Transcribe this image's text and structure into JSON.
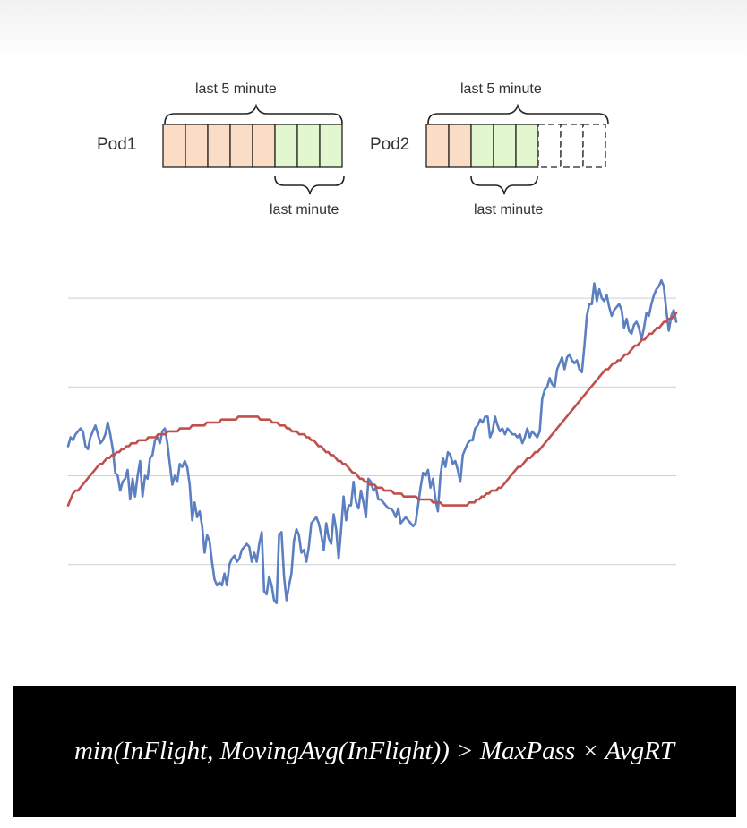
{
  "diagram": {
    "pods": [
      {
        "label": "Pod1",
        "top_label": "last 5 minute",
        "bottom_label": "last minute",
        "cells": [
          "past",
          "past",
          "past",
          "past",
          "past",
          "recent",
          "recent",
          "recent"
        ]
      },
      {
        "label": "Pod2",
        "top_label": "last 5 minute",
        "bottom_label": "last minute",
        "cells": [
          "past",
          "past",
          "recent",
          "recent",
          "recent",
          "empty",
          "empty",
          "empty"
        ]
      }
    ],
    "colors": {
      "past": "#fbdcc4",
      "recent": "#e3f7cf",
      "empty": "#ffffff",
      "stroke": "#222222"
    }
  },
  "chart_data": {
    "type": "line",
    "grid": true,
    "series": [
      {
        "color": "#5b7fc0",
        "values": [
          70,
          73,
          72,
          74,
          75,
          76,
          75,
          70,
          69,
          73,
          75,
          77,
          74,
          71,
          72,
          74,
          78,
          74,
          69,
          61,
          60,
          55,
          58,
          59,
          62,
          52,
          59,
          53,
          60,
          65,
          53,
          60,
          59,
          66,
          67,
          72,
          73,
          71,
          75,
          76,
          71,
          64,
          57,
          60,
          58,
          64,
          63,
          65,
          63,
          57,
          45,
          51,
          46,
          48,
          43,
          34,
          40,
          38,
          31,
          25,
          23,
          24,
          23,
          27,
          23,
          30,
          32,
          33,
          31,
          32,
          35,
          36,
          37,
          36,
          31,
          34,
          31,
          37,
          41,
          21,
          20,
          26,
          23,
          18,
          17,
          40,
          41,
          26,
          18,
          23,
          27,
          38,
          42,
          40,
          34,
          35,
          31,
          36,
          44,
          45,
          46,
          44,
          40,
          35,
          44,
          39,
          37,
          47,
          42,
          32,
          42,
          53,
          45,
          50,
          50,
          58,
          51,
          49,
          55,
          51,
          46,
          59,
          58,
          55,
          56,
          52,
          52,
          51,
          50,
          49,
          49,
          48,
          46,
          49,
          44,
          45,
          46,
          45,
          44,
          43,
          44,
          50,
          56,
          61,
          60,
          62,
          56,
          59,
          52,
          48,
          60,
          66,
          63,
          68,
          67,
          64,
          65,
          62,
          58,
          67,
          69,
          71,
          72,
          72,
          76,
          77,
          79,
          78,
          80,
          80,
          73,
          75,
          80,
          77,
          75,
          76,
          74,
          76,
          75,
          74,
          74,
          73,
          74,
          71,
          73,
          76,
          73,
          75,
          74,
          73,
          75,
          86,
          89,
          90,
          93,
          91,
          90,
          96,
          98,
          100,
          96,
          100,
          101,
          99,
          98,
          99,
          96,
          95,
          104,
          114,
          118,
          118,
          125,
          119,
          123,
          120,
          119,
          121,
          117,
          114,
          116,
          117,
          118,
          116,
          110,
          113,
          109,
          108,
          111,
          112,
          110,
          106,
          110,
          115,
          114,
          118,
          121,
          123,
          124,
          126,
          124,
          116,
          109,
          114,
          116,
          112
        ]
      },
      {
        "color": "#c0504d",
        "values": [
          50,
          52,
          54,
          55,
          55,
          56,
          57,
          58,
          59,
          60,
          61,
          62,
          63,
          64,
          64,
          65,
          66,
          66,
          67,
          67,
          68,
          68,
          69,
          69,
          70,
          70,
          71,
          71,
          71,
          72,
          72,
          72,
          72,
          73,
          73,
          73,
          73,
          74,
          74,
          74,
          74,
          75,
          75,
          75,
          75,
          75,
          76,
          76,
          76,
          76,
          76,
          77,
          77,
          77,
          77,
          77,
          77,
          78,
          78,
          78,
          78,
          78,
          78,
          79,
          79,
          79,
          79,
          79,
          79,
          79,
          80,
          80,
          80,
          80,
          80,
          80,
          80,
          80,
          80,
          79,
          79,
          79,
          79,
          79,
          78,
          78,
          78,
          77,
          77,
          77,
          76,
          76,
          75,
          75,
          75,
          74,
          74,
          74,
          73,
          73,
          72,
          72,
          71,
          70,
          70,
          69,
          68,
          68,
          67,
          67,
          66,
          65,
          65,
          64,
          64,
          63,
          62,
          61,
          61,
          60,
          59,
          59,
          58,
          58,
          57,
          57,
          57,
          56,
          56,
          56,
          55,
          55,
          55,
          55,
          54,
          54,
          54,
          54,
          53,
          53,
          53,
          53,
          53,
          53,
          52,
          52,
          52,
          52,
          52,
          52,
          51,
          51,
          51,
          51,
          50,
          50,
          50,
          50,
          50,
          50,
          50,
          50,
          50,
          50,
          50,
          51,
          51,
          51,
          52,
          52,
          53,
          53,
          54,
          54,
          55,
          55,
          55,
          56,
          56,
          57,
          58,
          59,
          60,
          61,
          62,
          63,
          63,
          64,
          65,
          66,
          66,
          67,
          68,
          68,
          69,
          70,
          71,
          72,
          73,
          74,
          75,
          76,
          77,
          78,
          79,
          80,
          81,
          82,
          83,
          84,
          85,
          86,
          87,
          88,
          89,
          90,
          91,
          92,
          93,
          94,
          95,
          96,
          96,
          97,
          98,
          98,
          99,
          99,
          100,
          101,
          101,
          102,
          103,
          104,
          104,
          105,
          106,
          106,
          107,
          108,
          108,
          109,
          110,
          110,
          111,
          112,
          112,
          113,
          113,
          114,
          115
        ]
      }
    ],
    "ylim": [
      0,
      130
    ],
    "gridlines": [
      30,
      60,
      90,
      120
    ]
  },
  "formula": "min(InFlight, MovingAvg(InFlight)) > MaxPass × AvgRT"
}
